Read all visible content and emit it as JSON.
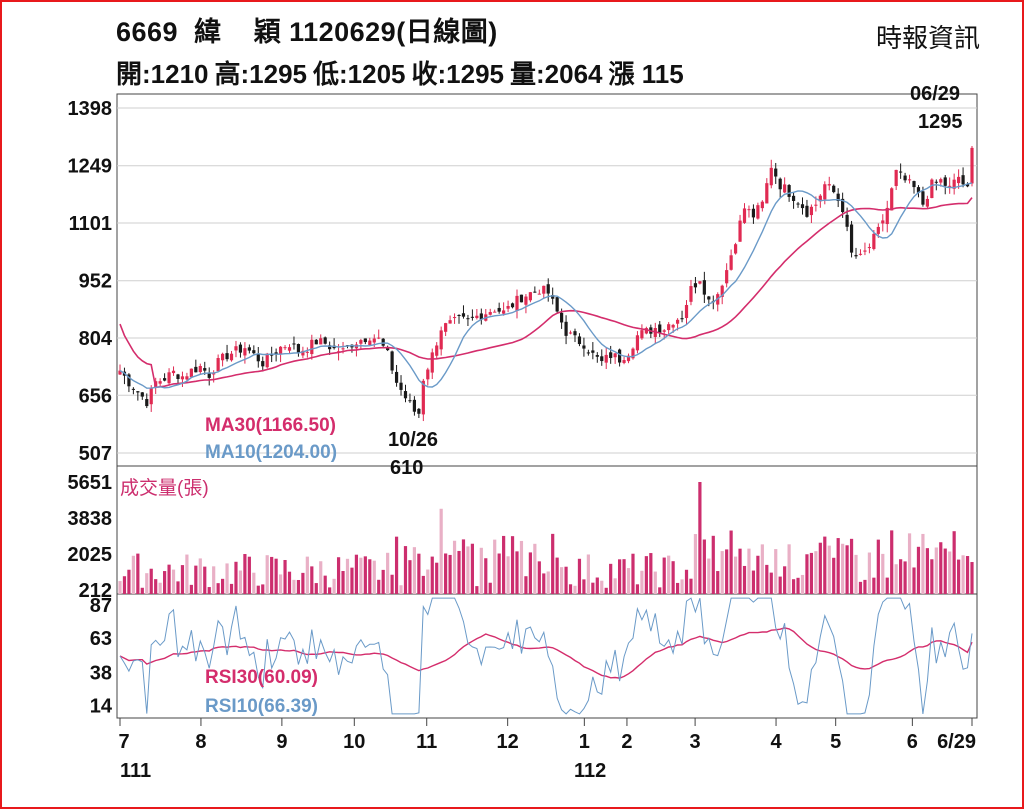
{
  "header": {
    "title": "6669  緯    穎 1120629(日線圖)",
    "source": "時報資訊",
    "open": "開:1210",
    "high": "高:1295",
    "low": "低:1205",
    "close": "收:1295",
    "volume": "量:2064",
    "change": "漲 115"
  },
  "colors": {
    "frame": "#e8191c",
    "up": "#e02a52",
    "down": "#1a1a1a",
    "ma30": "#d42d6c",
    "ma10": "#6a9ac8",
    "volume": "#cc2e6e",
    "rsi30": "#d42d6c",
    "rsi10": "#6a9ac8"
  },
  "chart_data": [
    {
      "type": "candlestick",
      "title": "6669 緯 穎 1120629(日線圖)",
      "y_ticks": [
        "1398",
        "1249",
        "1101",
        "952",
        "804",
        "656",
        "507"
      ],
      "ylim": [
        507,
        1398
      ],
      "x_ticks": [
        "7",
        "8",
        "9",
        "10",
        "11",
        "12",
        "1",
        "2",
        "3",
        "4",
        "5",
        "6",
        "6/29"
      ],
      "year_labels": [
        "111",
        "112"
      ],
      "annotations": {
        "last_date": "06/29",
        "last_value": "1295",
        "low_date": "10/26",
        "low_value": "610"
      },
      "legend": {
        "ma30": "MA30(1166.50)",
        "ma10": "MA10(1204.00)"
      },
      "series": [
        {
          "name": "MA30",
          "value_last": 1166.5
        },
        {
          "name": "MA10",
          "value_last": 1204.0
        }
      ],
      "price_path": [
        [
          0,
          720
        ],
        [
          2,
          690
        ],
        [
          4,
          665
        ],
        [
          6,
          640
        ],
        [
          8,
          690
        ],
        [
          10,
          700
        ],
        [
          12,
          715
        ],
        [
          14,
          705
        ],
        [
          16,
          720
        ],
        [
          18,
          730
        ],
        [
          20,
          710
        ],
        [
          22,
          740
        ],
        [
          24,
          760
        ],
        [
          26,
          770
        ],
        [
          28,
          780
        ],
        [
          30,
          760
        ],
        [
          32,
          740
        ],
        [
          34,
          760
        ],
        [
          36,
          780
        ],
        [
          38,
          790
        ],
        [
          40,
          770
        ],
        [
          42,
          780
        ],
        [
          44,
          795
        ],
        [
          46,
          790
        ],
        [
          48,
          775
        ],
        [
          50,
          770
        ],
        [
          52,
          790
        ],
        [
          54,
          800
        ],
        [
          56,
          810
        ],
        [
          58,
          800
        ],
        [
          60,
          760
        ],
        [
          62,
          690
        ],
        [
          64,
          650
        ],
        [
          66,
          615
        ],
        [
          67,
          610
        ],
        [
          68,
          700
        ],
        [
          70,
          760
        ],
        [
          72,
          830
        ],
        [
          74,
          840
        ],
        [
          76,
          850
        ],
        [
          78,
          848
        ],
        [
          80,
          860
        ],
        [
          82,
          870
        ],
        [
          84,
          880
        ],
        [
          86,
          870
        ],
        [
          88,
          890
        ],
        [
          90,
          910
        ],
        [
          92,
          920
        ],
        [
          94,
          930
        ],
        [
          96,
          920
        ],
        [
          98,
          870
        ],
        [
          100,
          820
        ],
        [
          102,
          800
        ],
        [
          104,
          790
        ],
        [
          106,
          760
        ],
        [
          108,
          740
        ],
        [
          110,
          760
        ],
        [
          112,
          750
        ],
        [
          114,
          770
        ],
        [
          116,
          810
        ],
        [
          118,
          820
        ],
        [
          120,
          830
        ],
        [
          122,
          830
        ],
        [
          124,
          850
        ],
        [
          126,
          860
        ],
        [
          128,
          930
        ],
        [
          130,
          960
        ],
        [
          132,
          900
        ],
        [
          134,
          920
        ],
        [
          136,
          980
        ],
        [
          138,
          1060
        ],
        [
          140,
          1140
        ],
        [
          142,
          1120
        ],
        [
          144,
          1150
        ],
        [
          146,
          1250
        ],
        [
          148,
          1200
        ],
        [
          150,
          1180
        ],
        [
          152,
          1160
        ],
        [
          154,
          1130
        ],
        [
          156,
          1150
        ],
        [
          158,
          1200
        ],
        [
          160,
          1180
        ],
        [
          162,
          1140
        ],
        [
          164,
          1020
        ],
        [
          166,
          1010
        ],
        [
          168,
          1040
        ],
        [
          170,
          1080
        ],
        [
          172,
          1140
        ],
        [
          174,
          1230
        ],
        [
          176,
          1210
        ],
        [
          178,
          1190
        ],
        [
          180,
          1150
        ],
        [
          182,
          1200
        ],
        [
          184,
          1210
        ],
        [
          186,
          1190
        ],
        [
          188,
          1220
        ],
        [
          190,
          1185
        ],
        [
          191,
          1295
        ]
      ]
    },
    {
      "type": "bar",
      "title": "成交量(張)",
      "y_ticks": [
        "5651",
        "3838",
        "2025",
        "212"
      ],
      "ylim": [
        0,
        5651
      ],
      "note": "daily volume bars"
    },
    {
      "type": "line",
      "title": "RSI",
      "y_ticks": [
        "87",
        "63",
        "38",
        "14"
      ],
      "ylim": [
        5,
        95
      ],
      "legend": {
        "rsi30": "RSI30(60.09)",
        "rsi10": "RSI10(66.39)"
      },
      "series": [
        {
          "name": "RSI30",
          "value_last": 60.09
        },
        {
          "name": "RSI10",
          "value_last": 66.39
        }
      ]
    }
  ]
}
